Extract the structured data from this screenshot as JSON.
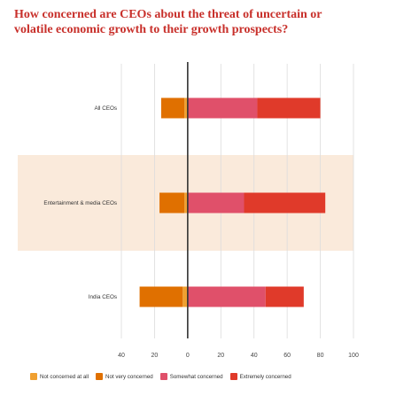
{
  "title": "How concerned are CEOs about the threat of uncertain or volatile economic growth to their growth prospects?",
  "chart_data": {
    "type": "bar",
    "orientation": "horizontal-diverging",
    "categories": [
      "All CEOs",
      "Entertainment & media CEOs",
      "India CEOs"
    ],
    "series": [
      {
        "name": "Not concerned at all",
        "color": "#f0a030",
        "values": [
          -2,
          -2,
          -3
        ]
      },
      {
        "name": "Not very concerned",
        "color": "#e07000",
        "values": [
          -14,
          -15,
          -26
        ]
      },
      {
        "name": "Somewhat concerned",
        "color": "#e0506a",
        "values": [
          42,
          34,
          47
        ]
      },
      {
        "name": "Extremely concerned",
        "color": "#e03a2a",
        "values": [
          38,
          49,
          23
        ]
      }
    ],
    "x_ticks": [
      "40",
      "20",
      "0",
      "20",
      "40",
      "60",
      "80",
      "100"
    ],
    "xlim": [
      -40,
      100
    ],
    "highlight_category": "Entertainment & media CEOs",
    "highlight_color": "#faeadb",
    "grid": true,
    "legend_position": "bottom"
  }
}
